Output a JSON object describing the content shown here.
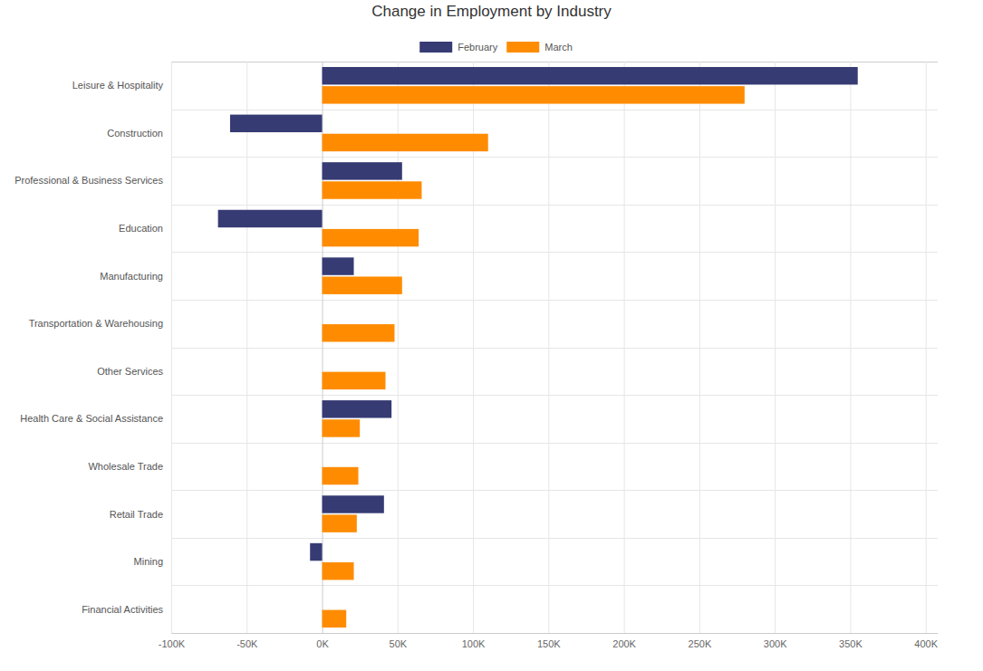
{
  "chart_data": {
    "type": "bar",
    "orientation": "horizontal",
    "title": "Change in Employment by Industry",
    "categories": [
      "Leisure & Hospitality",
      "Construction",
      "Professional & Business Services",
      "Education",
      "Manufacturing",
      "Transportation & Warehousing",
      "Other Services",
      "Health Care & Social Assistance",
      "Wholesale Trade",
      "Retail Trade",
      "Mining",
      "Financial Activities"
    ],
    "series": [
      {
        "name": "February",
        "color": "#363b74",
        "values": [
          355000,
          -61000,
          53000,
          -69000,
          21000,
          null,
          null,
          46000,
          null,
          41000,
          -8000,
          null
        ]
      },
      {
        "name": "March",
        "color": "#ff8c00",
        "values": [
          280000,
          110000,
          66000,
          64000,
          53000,
          48000,
          42000,
          25000,
          24000,
          23000,
          21000,
          16000
        ]
      }
    ],
    "xlim": [
      -100000,
      408000
    ],
    "xticks": [
      {
        "value": -100000,
        "label": "-100K"
      },
      {
        "value": -50000,
        "label": "-50K"
      },
      {
        "value": 0,
        "label": "0K"
      },
      {
        "value": 50000,
        "label": "50K"
      },
      {
        "value": 100000,
        "label": "100K"
      },
      {
        "value": 150000,
        "label": "150K"
      },
      {
        "value": 200000,
        "label": "200K"
      },
      {
        "value": 250000,
        "label": "250K"
      },
      {
        "value": 300000,
        "label": "300K"
      },
      {
        "value": 350000,
        "label": "350K"
      },
      {
        "value": 400000,
        "label": "400K"
      }
    ],
    "grid": true,
    "legend": "top"
  }
}
